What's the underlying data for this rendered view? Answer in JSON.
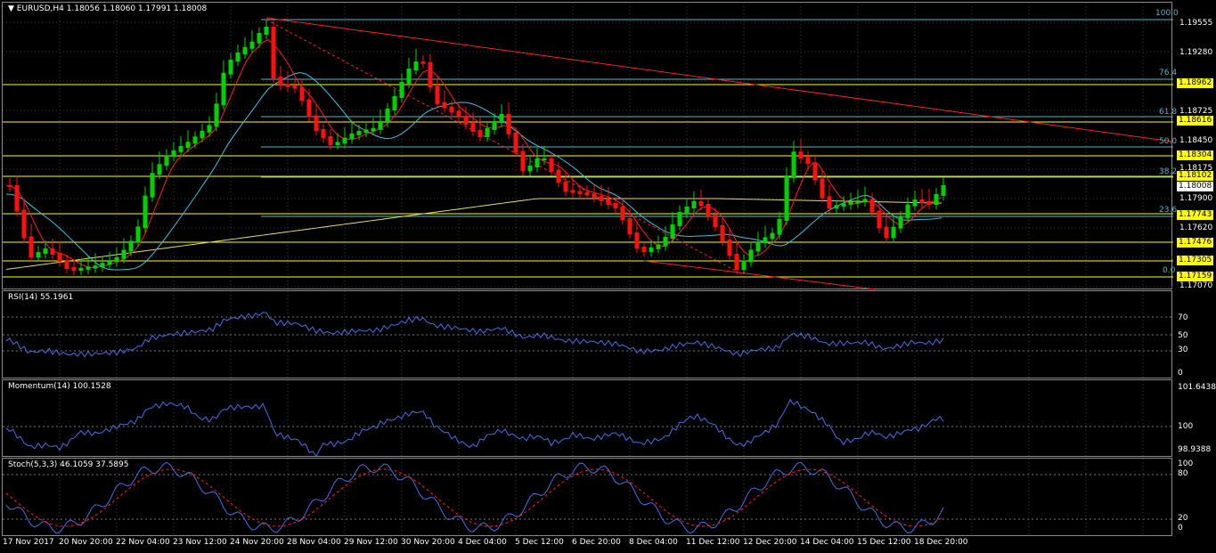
{
  "main": {
    "symbol_header": "EURUSD,H4  1.18056 1.18060 1.17991 1.18008",
    "price_labels": [
      "1.19555",
      "1.19280",
      "1.18725",
      "1.18450",
      "1.18175",
      "1.17900",
      "1.17620",
      "1.17070"
    ],
    "price_tags": [
      {
        "text": "1.18962",
        "color": "#ffff00"
      },
      {
        "text": "1.18616",
        "color": "#ffff00"
      },
      {
        "text": "1.18304",
        "color": "#ffff00"
      },
      {
        "text": "1.18102",
        "color": "#ffff00"
      },
      {
        "text": "1.18008",
        "color": "#ffffff"
      },
      {
        "text": "1.17743",
        "color": "#ffff00"
      },
      {
        "text": "1.17476",
        "color": "#ffff00"
      },
      {
        "text": "1.17305",
        "color": "#ffff00"
      },
      {
        "text": "1.17159",
        "color": "#ffff00"
      }
    ],
    "fib_labels": [
      "100.0",
      "76.4",
      "61.8",
      "50.0",
      "38.2",
      "23.6",
      "0.0"
    ]
  },
  "rsi": {
    "header": "RSI(14) 55.1961",
    "levels": [
      "70",
      "50",
      "30",
      "0"
    ]
  },
  "momentum": {
    "header": "Momentum(14) 100.1528",
    "levels": [
      "101.6438",
      "100",
      "98.9388"
    ]
  },
  "stoch": {
    "header": "Stoch(5,3,3) 46.1059 37.5895",
    "levels": [
      "100",
      "80",
      "20",
      "0"
    ]
  },
  "time_axis": [
    "17 Nov 2017",
    "20 Nov 20:00",
    "22 Nov 04:00",
    "23 Nov 12:00",
    "24 Nov 20:00",
    "28 Nov 04:00",
    "29 Nov 12:00",
    "30 Nov 20:00",
    "4 Dec 04:00",
    "5 Dec 12:00",
    "6 Dec 20:00",
    "8 Dec 04:00",
    "11 Dec 12:00",
    "12 Dec 20:00",
    "14 Dec 04:00",
    "15 Dec 12:00",
    "18 Dec 20:00"
  ],
  "colors": {
    "bull": "#00d000",
    "bear": "#ff1010",
    "fib": "#ffff00",
    "trend": "#ff2020",
    "ma_fast": "#ff2020",
    "ma_mid": "#40c0e0",
    "ma_slow": "#e8e060",
    "osc": "#4a6ee0"
  }
}
